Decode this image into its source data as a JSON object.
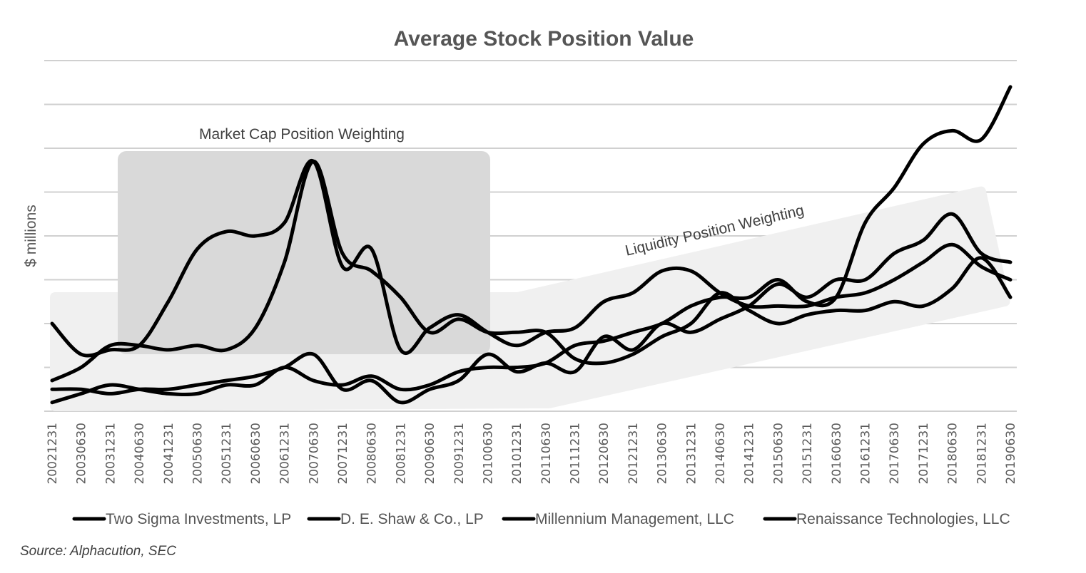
{
  "chart_data": {
    "type": "line",
    "title": "Average Stock Position Value",
    "xlabel": "",
    "ylabel": "$ millions",
    "ylim": [
      0,
      8
    ],
    "y_units_note": "No numeric y tick labels shown; values expressed in gridline units (0 = bottom gridline, 8 = top gridline)",
    "grid": true,
    "y_gridlines": [
      0,
      1,
      2,
      3,
      4,
      5,
      6,
      7,
      8
    ],
    "legend_position": "bottom",
    "source": "Source: Alphacution, SEC",
    "annotations": [
      {
        "text": "Market Cap Position Weighting",
        "region": "2003H2-2010H1"
      },
      {
        "text": "Liquidity Position Weighting",
        "region": "2010H2-2019H1"
      }
    ],
    "categories": [
      "20021231",
      "20030630",
      "20031231",
      "20040630",
      "20041231",
      "20050630",
      "20051231",
      "20060630",
      "20061231",
      "20070630",
      "20071231",
      "20080630",
      "20081231",
      "20090630",
      "20091231",
      "20100630",
      "20101231",
      "20110630",
      "20111231",
      "20120630",
      "20121231",
      "20130630",
      "20131231",
      "20140630",
      "20141231",
      "20150630",
      "20151231",
      "20160630",
      "20161231",
      "20170630",
      "20171231",
      "20180630",
      "20181231",
      "20190630"
    ],
    "series": [
      {
        "name": "Two Sigma Investments, LP",
        "values": [
          0.2,
          0.4,
          0.6,
          0.5,
          0.4,
          0.4,
          0.6,
          0.6,
          1.0,
          0.7,
          0.6,
          0.8,
          0.5,
          0.6,
          0.9,
          1.0,
          1.0,
          1.1,
          1.5,
          1.6,
          1.8,
          2.0,
          2.4,
          2.6,
          2.6,
          3.0,
          2.5,
          2.6,
          4.3,
          5.1,
          6.1,
          6.4,
          6.2,
          7.4
        ]
      },
      {
        "name": "D. E. Shaw & Co., LP",
        "values": [
          0.5,
          0.5,
          0.4,
          0.5,
          0.5,
          0.6,
          0.7,
          0.8,
          1.0,
          1.3,
          0.5,
          0.7,
          0.2,
          0.5,
          0.7,
          1.3,
          0.9,
          1.1,
          0.9,
          1.7,
          1.4,
          2.0,
          1.8,
          2.1,
          2.4,
          2.9,
          2.6,
          3.0,
          3.0,
          3.6,
          3.9,
          4.5,
          3.6,
          3.4
        ]
      },
      {
        "name": "Millennium Management, LLC",
        "values": [
          0.7,
          1.0,
          1.5,
          1.5,
          1.4,
          1.5,
          1.4,
          1.9,
          3.4,
          5.7,
          3.6,
          3.2,
          2.6,
          1.8,
          2.1,
          1.8,
          1.8,
          1.8,
          1.2,
          1.1,
          1.3,
          1.7,
          2.0,
          2.7,
          2.3,
          2.0,
          2.2,
          2.3,
          2.3,
          2.5,
          2.4,
          2.8,
          3.5,
          2.6
        ]
      },
      {
        "name": "Renaissance Technologies, LLC",
        "values": [
          2.0,
          1.3,
          1.4,
          1.5,
          2.5,
          3.7,
          4.1,
          4.0,
          4.3,
          5.7,
          3.3,
          3.7,
          1.4,
          1.9,
          2.2,
          1.8,
          1.5,
          1.8,
          1.9,
          2.5,
          2.7,
          3.2,
          3.2,
          2.7,
          2.4,
          2.4,
          2.4,
          2.6,
          2.7,
          3.0,
          3.4,
          3.8,
          3.3,
          3.0
        ]
      }
    ]
  }
}
